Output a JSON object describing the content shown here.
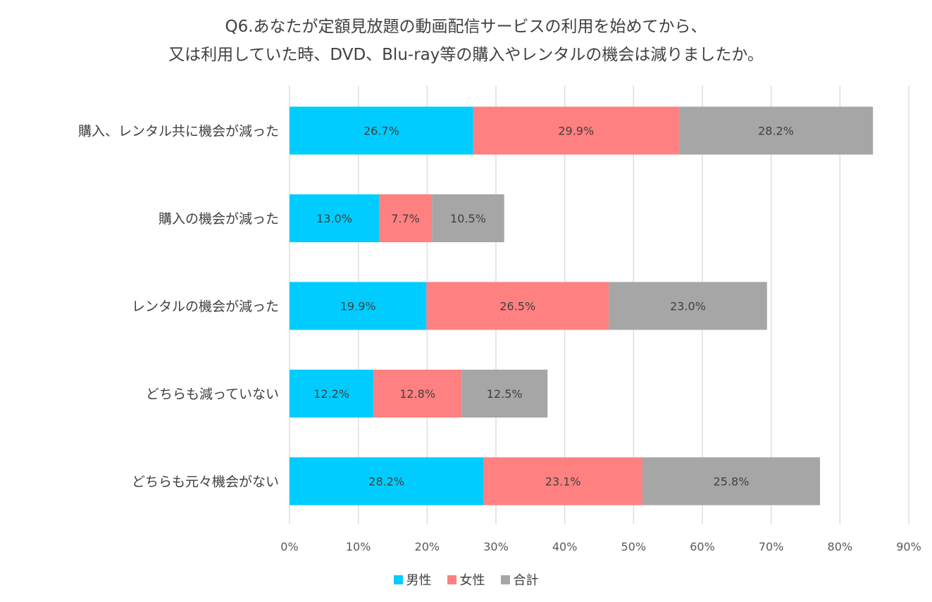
{
  "chart_data": {
    "type": "bar",
    "orientation": "horizontal",
    "stacked": true,
    "title": [
      "Q6.あなたが定額見放題の動画配信サービスの利用を始めてから、",
      "又は利用していた時、DVD、Blu-ray等の購入やレンタルの機会は減りましたか。"
    ],
    "categories": [
      "購入、レンタル共に機会が減った",
      "購入の機会が減った",
      "レンタルの機会が減った",
      "どちらも減っていない",
      "どちらも元々機会がない"
    ],
    "series": [
      {
        "name": "男性",
        "values": [
          26.7,
          13.0,
          19.9,
          12.2,
          28.2
        ],
        "labels": [
          "26.7%",
          "13.0%",
          "19.9%",
          "12.2%",
          "28.2%"
        ],
        "color": "#00CCFF"
      },
      {
        "name": "女性",
        "values": [
          29.9,
          7.7,
          26.5,
          12.8,
          23.1
        ],
        "labels": [
          "29.9%",
          "7.7%",
          "26.5%",
          "12.8%",
          "23.1%"
        ],
        "color": "#FF8080"
      },
      {
        "name": "合計",
        "values": [
          28.2,
          10.5,
          23.0,
          12.5,
          25.8
        ],
        "labels": [
          "28.2%",
          "10.5%",
          "23.0%",
          "12.5%",
          "25.8%"
        ],
        "color": "#A6A6A6"
      }
    ],
    "xlim": [
      0,
      90
    ],
    "xticks": [
      0,
      10,
      20,
      30,
      40,
      50,
      60,
      70,
      80,
      90
    ],
    "xtick_labels": [
      "0%",
      "10%",
      "20%",
      "30%",
      "40%",
      "50%",
      "60%",
      "70%",
      "80%",
      "90%"
    ],
    "grid": "vertical",
    "legend_position": "bottom",
    "gridline_color": "#D9D9D9"
  }
}
